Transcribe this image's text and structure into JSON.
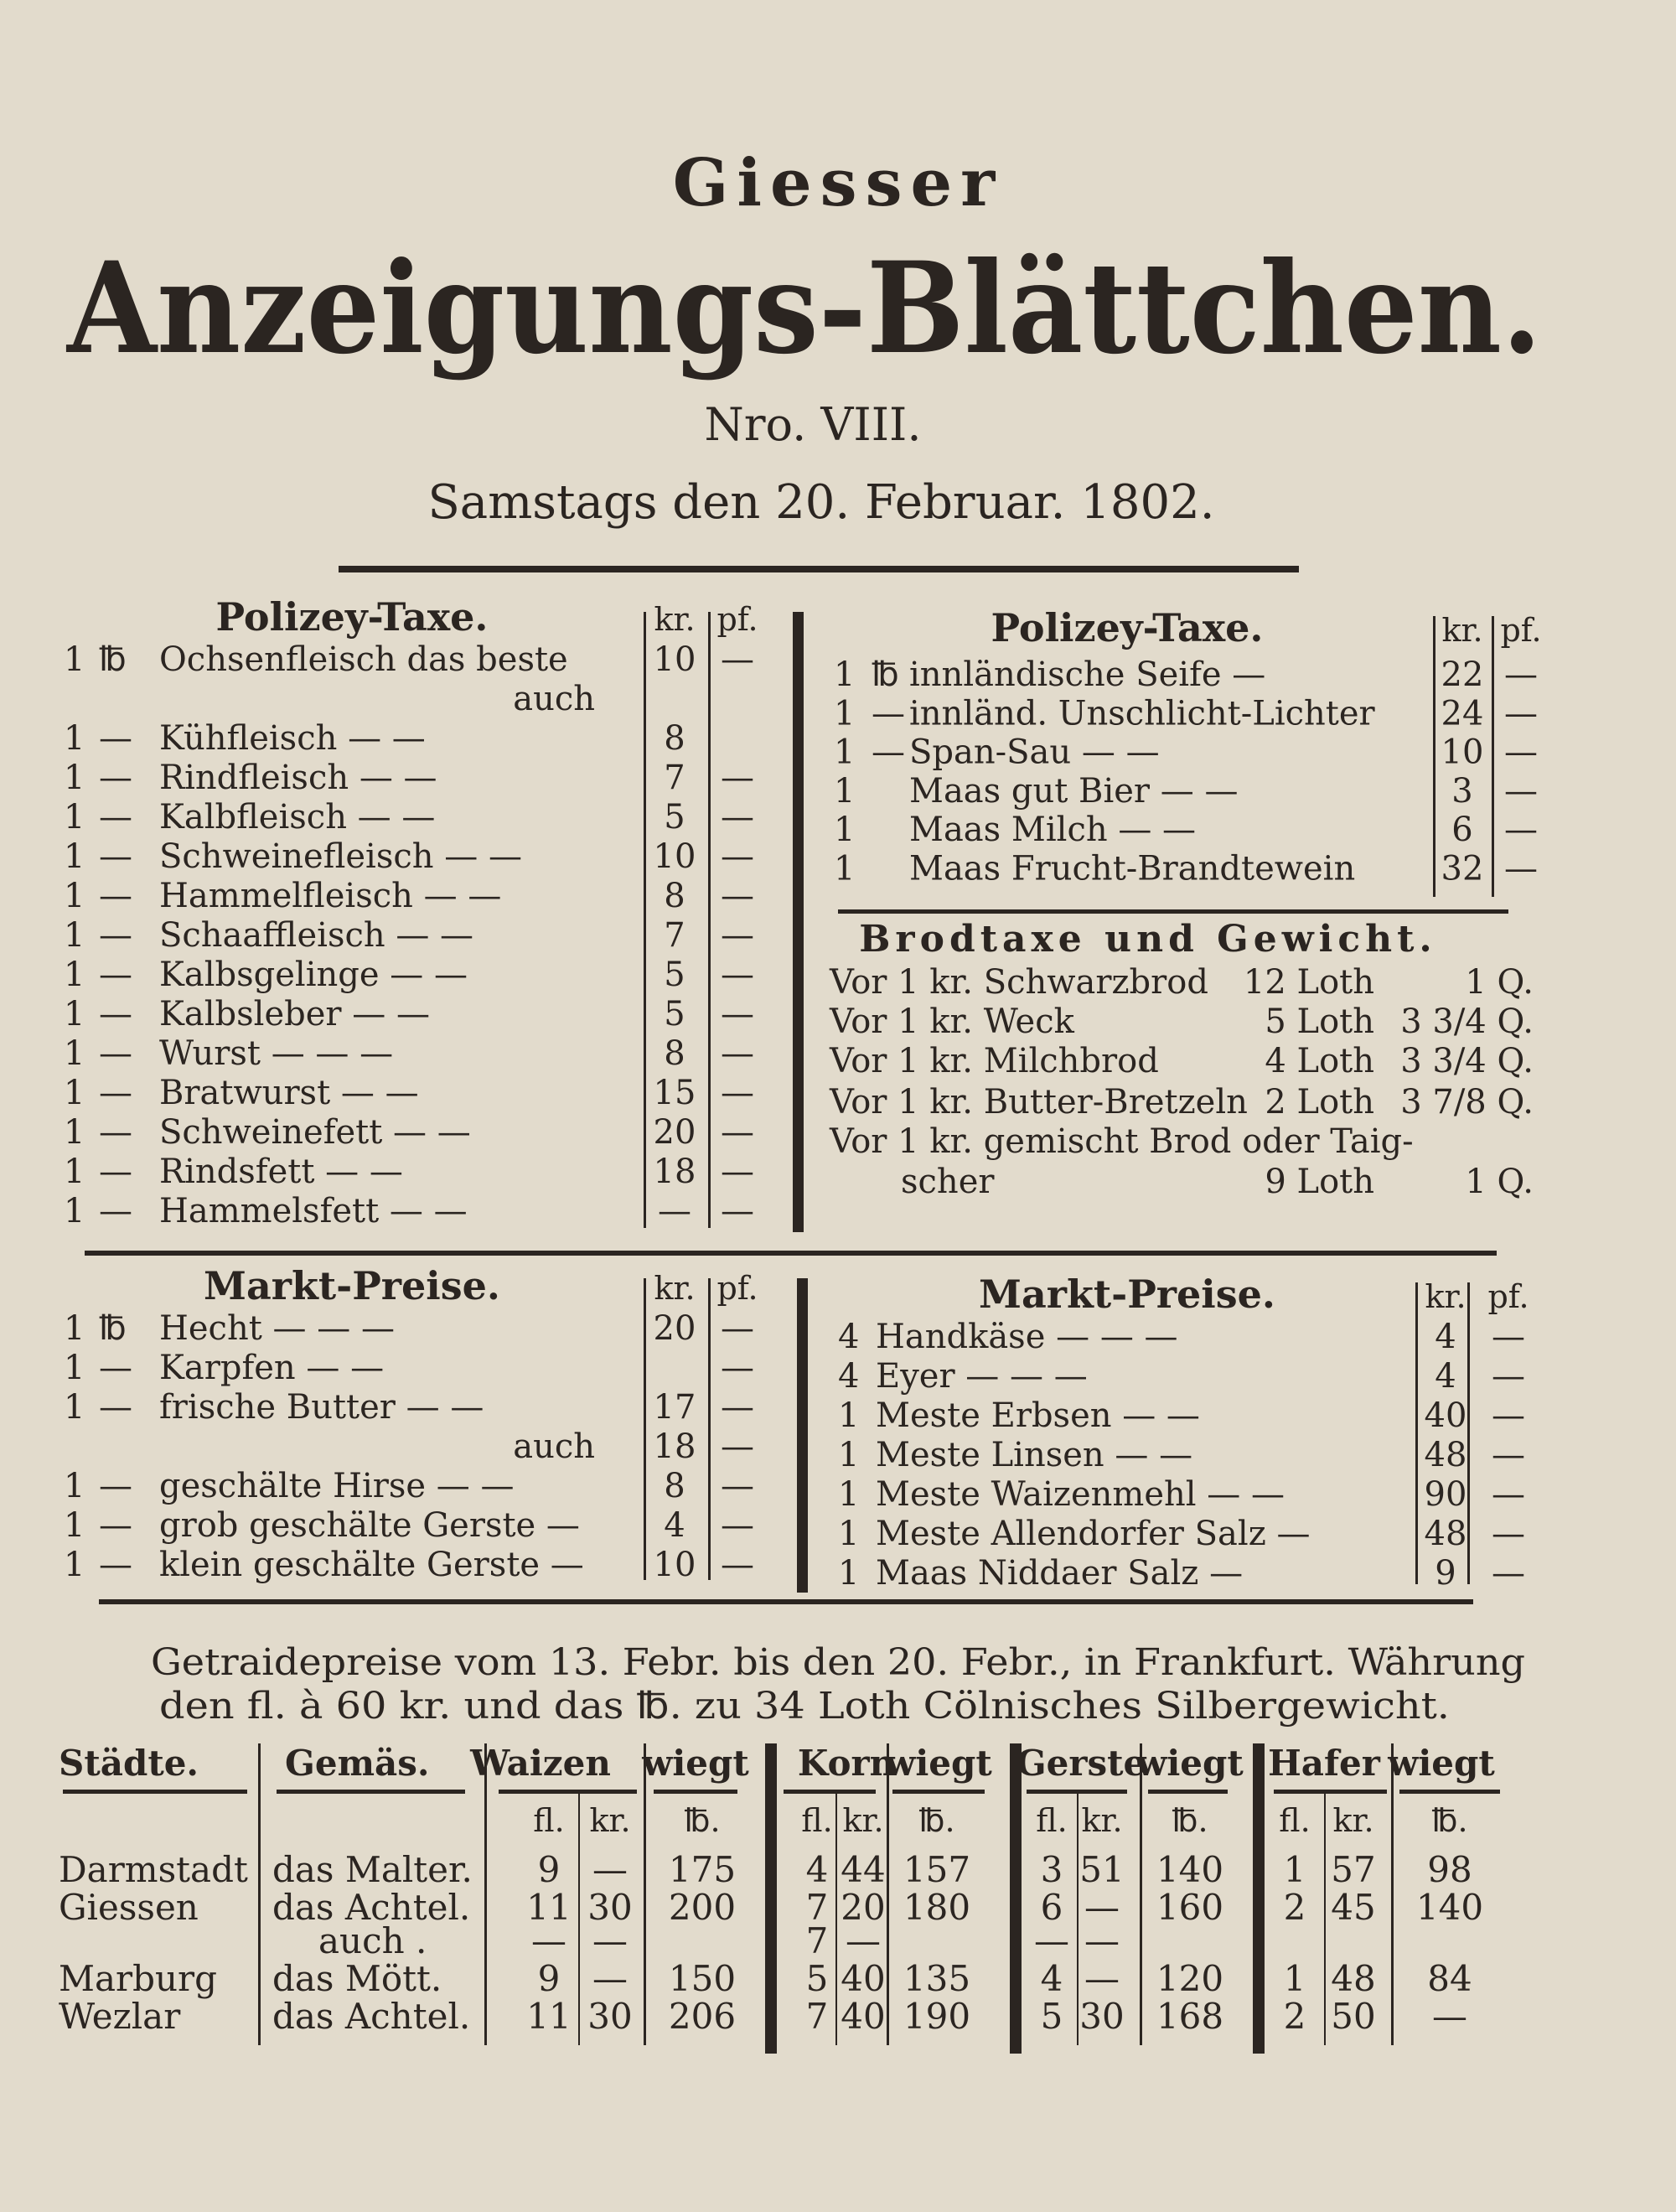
{
  "masthead": {
    "city": "Giesser",
    "title": "Anzeigungs-Blättchen.",
    "number": "Nro. VIII.",
    "date": "Samstags den 20. Februar. 1802."
  },
  "colors": {
    "paper": "#e2dbcc",
    "ink": "#2b2521"
  },
  "polizey_left": {
    "header": "Polizey-Taxe.",
    "kr_label": "kr.",
    "pf_label": "pf.",
    "rows": [
      {
        "qty": "1",
        "unit": "℔",
        "item": "Ochsenfleisch das beste",
        "kr": "10",
        "pf": "—"
      },
      {
        "qty": "",
        "unit": "",
        "item": "auch",
        "kr": "",
        "pf": ""
      },
      {
        "qty": "1",
        "unit": "—",
        "item": "Kühfleisch   —   —",
        "kr": "8",
        "pf": ""
      },
      {
        "qty": "1",
        "unit": "—",
        "item": "Rindfleisch   —   —",
        "kr": "7",
        "pf": "—"
      },
      {
        "qty": "1",
        "unit": "—",
        "item": "Kalbfleisch   —   —",
        "kr": "5",
        "pf": "—"
      },
      {
        "qty": "1",
        "unit": "—",
        "item": "Schweinefleisch —  —",
        "kr": "10",
        "pf": "—"
      },
      {
        "qty": "1",
        "unit": "—",
        "item": "Hammelfleisch —  —",
        "kr": "8",
        "pf": "—"
      },
      {
        "qty": "1",
        "unit": "—",
        "item": "Schaaffleisch —  —",
        "kr": "7",
        "pf": "—"
      },
      {
        "qty": "1",
        "unit": "—",
        "item": "Kalbsgelinge —  —",
        "kr": "5",
        "pf": "—"
      },
      {
        "qty": "1",
        "unit": "—",
        "item": "Kalbsleber  —  —",
        "kr": "5",
        "pf": "—"
      },
      {
        "qty": "1",
        "unit": "—",
        "item": "Wurst  —  —  —",
        "kr": "8",
        "pf": "—"
      },
      {
        "qty": "1",
        "unit": "—",
        "item": "Bratwurst  —  —",
        "kr": "15",
        "pf": "—"
      },
      {
        "qty": "1",
        "unit": "—",
        "item": "Schweinefett —  —",
        "kr": "20",
        "pf": "—"
      },
      {
        "qty": "1",
        "unit": "—",
        "item": "Rindsfett  —  —",
        "kr": "18",
        "pf": "—"
      },
      {
        "qty": "1",
        "unit": "—",
        "item": "Hammelsfett —  —",
        "kr": "—",
        "pf": "—"
      }
    ]
  },
  "polizey_right": {
    "header": "Polizey-Taxe.",
    "kr_label": "kr.",
    "pf_label": "pf.",
    "rows": [
      {
        "qty": "1",
        "unit": "℔",
        "item": "innländische Seife  —",
        "kr": "22",
        "pf": "—"
      },
      {
        "qty": "1",
        "unit": "—",
        "item": "innländ. Unschlicht-Lichter",
        "kr": "24",
        "pf": "—"
      },
      {
        "qty": "1",
        "unit": "—",
        "item": "Span-Sau  —   —",
        "kr": "10",
        "pf": "—"
      },
      {
        "qty": "1",
        "unit": "",
        "item": "Maas gut Bier  —   —",
        "kr": "3",
        "pf": "—"
      },
      {
        "qty": "1",
        "unit": "",
        "item": "Maas Milch   —   —",
        "kr": "6",
        "pf": "—"
      },
      {
        "qty": "1",
        "unit": "",
        "item": "Maas Frucht-Brandtewein",
        "kr": "32",
        "pf": "—"
      }
    ]
  },
  "brodtaxe": {
    "header": "Brodtaxe und Gewicht.",
    "rows": [
      {
        "item": "Vor 1 kr. Schwarzbrod",
        "loth": "12 Loth",
        "q": "1 Q."
      },
      {
        "item": "Vor 1 kr. Weck",
        "loth": "5 Loth",
        "q": "3 3/4 Q."
      },
      {
        "item": "Vor 1 kr. Milchbrod",
        "loth": "4 Loth",
        "q": "3 3/4 Q."
      },
      {
        "item": "Vor 1 kr. Butter-Bretzeln",
        "loth": "2 Loth",
        "q": "3 7/8 Q."
      },
      {
        "item": "Vor 1 kr. gemischt Brod oder Taig-",
        "loth": "",
        "q": ""
      },
      {
        "item": "scher",
        "loth": "9 Loth",
        "q": "1 Q."
      }
    ]
  },
  "markt_left": {
    "header": "Markt-Preise.",
    "kr_label": "kr.",
    "pf_label": "pf.",
    "rows": [
      {
        "qty": "1",
        "unit": "℔",
        "item": "Hecht  —  —  —",
        "kr": "20",
        "pf": "—"
      },
      {
        "qty": "1",
        "unit": "—",
        "item": "Karpfen   —   —",
        "kr": "",
        "pf": "—"
      },
      {
        "qty": "1",
        "unit": "—",
        "item": "frische Butter —  —",
        "kr": "17",
        "pf": "—"
      },
      {
        "qty": "",
        "unit": "",
        "item": "auch",
        "kr": "18",
        "pf": "—"
      },
      {
        "qty": "1",
        "unit": "—",
        "item": "geschälte Hirse —  —",
        "kr": "8",
        "pf": "—"
      },
      {
        "qty": "1",
        "unit": "—",
        "item": "grob geschälte Gerste —",
        "kr": "4",
        "pf": "—"
      },
      {
        "qty": "1",
        "unit": "—",
        "item": "klein geschälte Gerste —",
        "kr": "10",
        "pf": "—"
      }
    ]
  },
  "markt_right": {
    "header": "Markt-Preise.",
    "kr_label": "kr.",
    "pf_label": "pf.",
    "rows": [
      {
        "qty": "4",
        "item": "Handkäse  —   —   —",
        "kr": "4",
        "pf": "—"
      },
      {
        "qty": "4",
        "item": "Eyer    —   —   —",
        "kr": "4",
        "pf": "—"
      },
      {
        "qty": "1",
        "item": "Meste Erbsen   —   —",
        "kr": "40",
        "pf": "—"
      },
      {
        "qty": "1",
        "item": "Meste Linsen   —   —",
        "kr": "48",
        "pf": "—"
      },
      {
        "qty": "1",
        "item": "Meste Waizenmehl —  —",
        "kr": "90",
        "pf": "—"
      },
      {
        "qty": "1",
        "item": "Meste Allendorfer Salz —",
        "kr": "48",
        "pf": "—"
      },
      {
        "qty": "1",
        "item": "Maas Niddaer Salz  —",
        "kr": "9",
        "pf": "—"
      }
    ]
  },
  "getraide": {
    "intro_line1": "Getraidepreise vom 13. Febr. bis den 20. Febr., in Frankfurt. Währung",
    "intro_line2": "den fl. à 60 kr. und das ℔. zu 34 Loth Cölnisches Silbergewicht.",
    "headers": [
      "Städte.",
      "Gemäs.",
      "Waizen",
      "wiegt",
      "Korn",
      "wiegt",
      "Gerste",
      "wiegt",
      "Hafer",
      "wiegt"
    ],
    "subheaders": [
      "fl.",
      "kr.",
      "℔.",
      "fl.",
      "kr.",
      "℔.",
      "fl.",
      "kr.",
      "℔.",
      "fl.",
      "kr.",
      "℔."
    ],
    "rows": [
      [
        "Darmstadt",
        "das Malter.",
        "9",
        "—",
        "175",
        "4",
        "44",
        "157",
        "3",
        "51",
        "140",
        "1",
        "57",
        "98"
      ],
      [
        "Giessen",
        "das Achtel.",
        "11",
        "30",
        "200",
        "7",
        "20",
        "180",
        "6",
        "—",
        "160",
        "2",
        "45",
        "140"
      ],
      [
        "",
        "auch .",
        "—",
        "—",
        "",
        "7",
        "—",
        "",
        "—",
        "—",
        "",
        "",
        "",
        ""
      ],
      [
        "Marburg",
        "das Mött.",
        "9",
        "—",
        "150",
        "5",
        "40",
        "135",
        "4",
        "—",
        "120",
        "1",
        "48",
        "84"
      ],
      [
        "Wezlar",
        "das Achtel.",
        "11",
        "30",
        "206",
        "7",
        "40",
        "190",
        "5",
        "30",
        "168",
        "2",
        "50",
        "—"
      ]
    ]
  }
}
